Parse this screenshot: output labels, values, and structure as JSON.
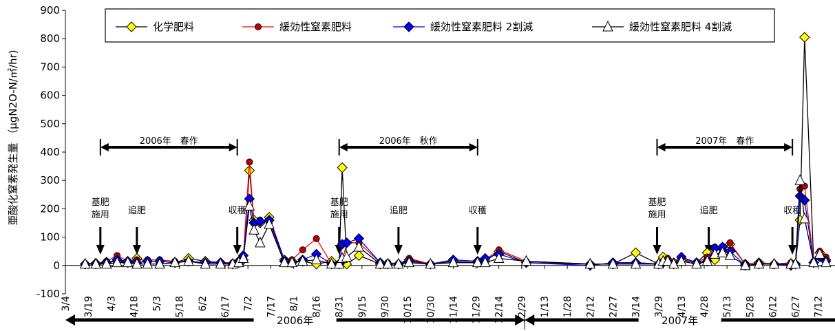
{
  "chart_data": {
    "type": "line",
    "ylabel": "亜酸化窒素発生量 （μgN2O-N/㎡/hr)",
    "ylim": [
      -100,
      900
    ],
    "yticks": [
      -100,
      0,
      100,
      200,
      300,
      400,
      500,
      600,
      700,
      800,
      900
    ],
    "xlim": [
      "2006-03-04",
      "2007-07-23"
    ],
    "xticks": [
      "3/4",
      "3/19",
      "4/3",
      "4/18",
      "5/3",
      "5/18",
      "6/2",
      "6/17",
      "7/2",
      "7/17",
      "8/1",
      "8/16",
      "8/31",
      "9/15",
      "9/30",
      "10/15",
      "10/30",
      "11/14",
      "11/29",
      "12/14",
      "12/29",
      "1/13",
      "1/28",
      "2/12",
      "2/27",
      "3/14",
      "3/29",
      "4/13",
      "4/28",
      "5/13",
      "5/28",
      "6/12",
      "6/27",
      "7/12"
    ],
    "x": [
      "2006-03-17",
      "2006-03-24",
      "2006-03-31",
      "2006-04-07",
      "2006-04-14",
      "2006-04-20",
      "2006-04-27",
      "2006-05-05",
      "2006-05-15",
      "2006-05-24",
      "2006-06-04",
      "2006-06-14",
      "2006-06-22",
      "2006-06-26",
      "2006-06-29",
      "2006-07-03",
      "2006-07-06",
      "2006-07-10",
      "2006-07-16",
      "2006-07-26",
      "2006-07-31",
      "2006-08-07",
      "2006-08-16",
      "2006-08-26",
      "2006-08-31",
      "2006-09-02",
      "2006-09-05",
      "2006-09-13",
      "2006-09-27",
      "2006-10-02",
      "2006-10-09",
      "2006-10-16",
      "2006-10-30",
      "2006-11-14",
      "2006-11-30",
      "2006-12-05",
      "2006-12-14",
      "2007-01-01",
      "2007-02-12",
      "2007-02-27",
      "2007-03-14",
      "2007-03-29",
      "2007-04-01",
      "2007-04-04",
      "2007-04-08",
      "2007-04-13",
      "2007-04-23",
      "2007-04-30",
      "2007-05-05",
      "2007-05-10",
      "2007-05-15",
      "2007-05-25",
      "2007-06-03",
      "2007-06-13",
      "2007-06-24",
      "2007-06-27",
      "2007-06-30",
      "2007-07-03",
      "2007-07-09",
      "2007-07-13",
      "2007-07-17"
    ],
    "series": [
      {
        "name": "化学肥料",
        "color": "#000000",
        "marker_fill": "#ffff00",
        "marker": "diamond",
        "values": [
          5,
          8,
          12,
          15,
          10,
          25,
          15,
          15,
          10,
          25,
          15,
          10,
          5,
          15,
          20,
          335,
          160,
          150,
          170,
          20,
          15,
          15,
          5,
          15,
          5,
          345,
          5,
          35,
          5,
          5,
          5,
          20,
          5,
          15,
          10,
          15,
          50,
          10,
          5,
          5,
          45,
          5,
          30,
          20,
          10,
          20,
          10,
          45,
          20,
          65,
          75,
          5,
          10,
          5,
          5,
          5,
          160,
          805,
          10,
          45,
          20
        ]
      },
      {
        "name": "緩効性窒素肥料",
        "color": "#ff0000",
        "marker_fill": "#c00000",
        "marker": "circle",
        "values": [
          5,
          5,
          15,
          35,
          15,
          20,
          20,
          20,
          15,
          15,
          10,
          10,
          10,
          15,
          30,
          365,
          150,
          160,
          150,
          20,
          20,
          55,
          95,
          5,
          5,
          15,
          80,
          80,
          10,
          10,
          5,
          25,
          5,
          20,
          15,
          20,
          55,
          15,
          5,
          5,
          10,
          5,
          15,
          25,
          5,
          25,
          10,
          30,
          65,
          55,
          80,
          5,
          10,
          5,
          10,
          5,
          270,
          280,
          15,
          50,
          30
        ]
      },
      {
        "name": "緩効性窒素肥料 2割減",
        "color": "#0000ff",
        "marker_fill": "#0000ff",
        "marker": "diamond",
        "values": [
          5,
          5,
          10,
          20,
          15,
          10,
          15,
          15,
          10,
          15,
          10,
          10,
          5,
          10,
          35,
          235,
          150,
          155,
          160,
          15,
          10,
          20,
          40,
          5,
          5,
          75,
          80,
          95,
          10,
          5,
          5,
          15,
          5,
          20,
          15,
          25,
          40,
          10,
          0,
          10,
          10,
          5,
          10,
          15,
          5,
          30,
          10,
          15,
          60,
          65,
          50,
          0,
          5,
          5,
          0,
          5,
          245,
          230,
          10,
          30,
          15
        ]
      },
      {
        "name": "緩効性窒素肥料 4割減",
        "color": "#000000",
        "marker_fill": "#ffffff",
        "marker": "triangle",
        "values": [
          5,
          5,
          5,
          10,
          10,
          5,
          5,
          5,
          10,
          15,
          5,
          5,
          5,
          10,
          25,
          210,
          125,
          80,
          145,
          10,
          10,
          15,
          20,
          5,
          5,
          25,
          30,
          65,
          5,
          5,
          5,
          10,
          5,
          10,
          10,
          10,
          25,
          15,
          5,
          5,
          5,
          5,
          15,
          15,
          5,
          15,
          5,
          15,
          40,
          45,
          35,
          0,
          5,
          5,
          5,
          5,
          300,
          165,
          10,
          40,
          10
        ]
      }
    ],
    "legend_position": "top",
    "annotations": {
      "periods": [
        {
          "label": "2006年　春作",
          "start": "2006-03-27",
          "end": "2006-06-25"
        },
        {
          "label": "2006年　秋作",
          "start": "2006-08-31",
          "end": "2006-11-30"
        },
        {
          "label": "2007年　春作",
          "start": "2007-03-28",
          "end": "2007-06-25"
        }
      ],
      "events": [
        {
          "label_lines": [
            "基肥",
            "施用"
          ],
          "date": "2006-03-27"
        },
        {
          "label_lines": [
            "追肥"
          ],
          "date": "2006-04-20"
        },
        {
          "label_lines": [
            "収穫"
          ],
          "date": "2006-06-25"
        },
        {
          "label_lines": [
            "基肥",
            "施用"
          ],
          "date": "2006-08-31"
        },
        {
          "label_lines": [
            "追肥"
          ],
          "date": "2006-10-09"
        },
        {
          "label_lines": [
            "収穫"
          ],
          "date": "2006-11-30"
        },
        {
          "label_lines": [
            "基肥",
            "施用"
          ],
          "date": "2007-03-28"
        },
        {
          "label_lines": [
            "追肥"
          ],
          "date": "2007-05-01"
        },
        {
          "label_lines": [
            "収穫"
          ],
          "date": "2007-06-25"
        }
      ],
      "years": [
        {
          "label": "2006年",
          "start": "2006-03-04",
          "end": "2006-12-31"
        },
        {
          "label": "2007年",
          "start": "2006-12-31",
          "end": "2007-07-23"
        }
      ]
    }
  }
}
